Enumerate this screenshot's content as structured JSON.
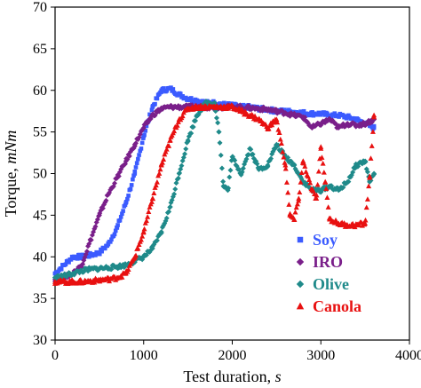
{
  "chart_data": {
    "type": "scatter",
    "title": "",
    "xlabel": "Test duration, ",
    "xlabel_italic": "s",
    "ylabel": "Torque, ",
    "ylabel_italic": "mNm",
    "xlim": [
      0,
      4000
    ],
    "ylim": [
      30,
      70
    ],
    "xticks": [
      0,
      1000,
      2000,
      3000,
      4000
    ],
    "yticks": [
      30,
      35,
      40,
      45,
      50,
      55,
      60,
      65,
      70
    ],
    "grid": false,
    "legend_position": "bottom-right",
    "series": [
      {
        "name": "Soy",
        "color": "#3b5bff",
        "marker": "square",
        "points": [
          [
            0,
            38
          ],
          [
            100,
            39
          ],
          [
            200,
            40
          ],
          [
            300,
            40
          ],
          [
            400,
            40.2
          ],
          [
            500,
            40.5
          ],
          [
            600,
            41.5
          ],
          [
            700,
            43.5
          ],
          [
            800,
            46.5
          ],
          [
            900,
            50
          ],
          [
            1000,
            54.5
          ],
          [
            1100,
            58
          ],
          [
            1200,
            60
          ],
          [
            1300,
            60.2
          ],
          [
            1400,
            59.5
          ],
          [
            1500,
            59
          ],
          [
            1600,
            58.8
          ],
          [
            1700,
            58.5
          ],
          [
            1800,
            58.5
          ],
          [
            1900,
            58.3
          ],
          [
            2000,
            58.2
          ],
          [
            2100,
            58
          ],
          [
            2200,
            58
          ],
          [
            2300,
            57.8
          ],
          [
            2400,
            57.7
          ],
          [
            2500,
            57.5
          ],
          [
            2600,
            57.5
          ],
          [
            2700,
            57.4
          ],
          [
            2800,
            57.3
          ],
          [
            2900,
            57.2
          ],
          [
            3000,
            57.2
          ],
          [
            3100,
            57
          ],
          [
            3200,
            57
          ],
          [
            3300,
            56.8
          ],
          [
            3400,
            56.5
          ],
          [
            3500,
            56
          ],
          [
            3600,
            55.5
          ]
        ]
      },
      {
        "name": "IRO",
        "color": "#7a1f8a",
        "marker": "diamond",
        "points": [
          [
            0,
            37.3
          ],
          [
            100,
            37.5
          ],
          [
            200,
            38
          ],
          [
            300,
            39
          ],
          [
            400,
            42
          ],
          [
            500,
            45
          ],
          [
            600,
            47.5
          ],
          [
            700,
            49.5
          ],
          [
            800,
            51.5
          ],
          [
            900,
            53.5
          ],
          [
            1000,
            55.5
          ],
          [
            1100,
            57
          ],
          [
            1200,
            57.8
          ],
          [
            1300,
            58
          ],
          [
            1400,
            58
          ],
          [
            1500,
            58
          ],
          [
            1600,
            58
          ],
          [
            1700,
            58
          ],
          [
            1800,
            58
          ],
          [
            1900,
            58
          ],
          [
            2000,
            58
          ],
          [
            2100,
            58
          ],
          [
            2200,
            57.9
          ],
          [
            2300,
            57.8
          ],
          [
            2400,
            57.7
          ],
          [
            2500,
            57.5
          ],
          [
            2600,
            57.3
          ],
          [
            2700,
            57
          ],
          [
            2800,
            56.8
          ],
          [
            2900,
            55.5
          ],
          [
            3000,
            56
          ],
          [
            3100,
            56.5
          ],
          [
            3200,
            55.5
          ],
          [
            3300,
            56
          ],
          [
            3400,
            55.8
          ],
          [
            3500,
            56
          ],
          [
            3600,
            56.5
          ]
        ]
      },
      {
        "name": "Olive",
        "color": "#1f8a8a",
        "marker": "diamond",
        "points": [
          [
            0,
            37.5
          ],
          [
            100,
            37.7
          ],
          [
            200,
            38
          ],
          [
            300,
            38.3
          ],
          [
            400,
            38.5
          ],
          [
            500,
            38.6
          ],
          [
            600,
            38.7
          ],
          [
            700,
            38.8
          ],
          [
            800,
            39
          ],
          [
            900,
            39.5
          ],
          [
            1000,
            40
          ],
          [
            1100,
            41
          ],
          [
            1200,
            43
          ],
          [
            1300,
            46
          ],
          [
            1400,
            50
          ],
          [
            1500,
            54
          ],
          [
            1600,
            57
          ],
          [
            1700,
            58.5
          ],
          [
            1800,
            58.5
          ],
          [
            1850,
            55
          ],
          [
            1900,
            48.5
          ],
          [
            1950,
            48
          ],
          [
            2000,
            52
          ],
          [
            2100,
            50
          ],
          [
            2200,
            53
          ],
          [
            2300,
            50.5
          ],
          [
            2400,
            51
          ],
          [
            2500,
            53.5
          ],
          [
            2600,
            52
          ],
          [
            2700,
            51
          ],
          [
            2800,
            49
          ],
          [
            2900,
            48
          ],
          [
            3000,
            48
          ],
          [
            3100,
            48.5
          ],
          [
            3200,
            48
          ],
          [
            3300,
            49
          ],
          [
            3400,
            51
          ],
          [
            3500,
            51.5
          ],
          [
            3550,
            49
          ],
          [
            3600,
            50
          ]
        ]
      },
      {
        "name": "Canola",
        "color": "#e81010",
        "marker": "triangle",
        "points": [
          [
            0,
            37
          ],
          [
            100,
            37
          ],
          [
            200,
            37
          ],
          [
            300,
            37
          ],
          [
            400,
            37.1
          ],
          [
            500,
            37.2
          ],
          [
            600,
            37.3
          ],
          [
            700,
            37.5
          ],
          [
            800,
            38
          ],
          [
            900,
            40
          ],
          [
            1000,
            43
          ],
          [
            1100,
            47
          ],
          [
            1200,
            51
          ],
          [
            1300,
            54
          ],
          [
            1400,
            56.5
          ],
          [
            1500,
            57.8
          ],
          [
            1600,
            58
          ],
          [
            1700,
            58
          ],
          [
            1800,
            58
          ],
          [
            1900,
            58
          ],
          [
            2000,
            58
          ],
          [
            2100,
            57.5
          ],
          [
            2200,
            57
          ],
          [
            2300,
            56.5
          ],
          [
            2400,
            55.5
          ],
          [
            2500,
            56.5
          ],
          [
            2600,
            51
          ],
          [
            2650,
            45
          ],
          [
            2700,
            44.5
          ],
          [
            2750,
            47
          ],
          [
            2800,
            51.5
          ],
          [
            2900,
            48
          ],
          [
            2950,
            47
          ],
          [
            3000,
            53
          ],
          [
            3050,
            49
          ],
          [
            3100,
            44.5
          ],
          [
            3200,
            44
          ],
          [
            3300,
            43.8
          ],
          [
            3400,
            43.8
          ],
          [
            3500,
            44
          ],
          [
            3550,
            49.5
          ],
          [
            3600,
            57
          ]
        ]
      }
    ]
  }
}
